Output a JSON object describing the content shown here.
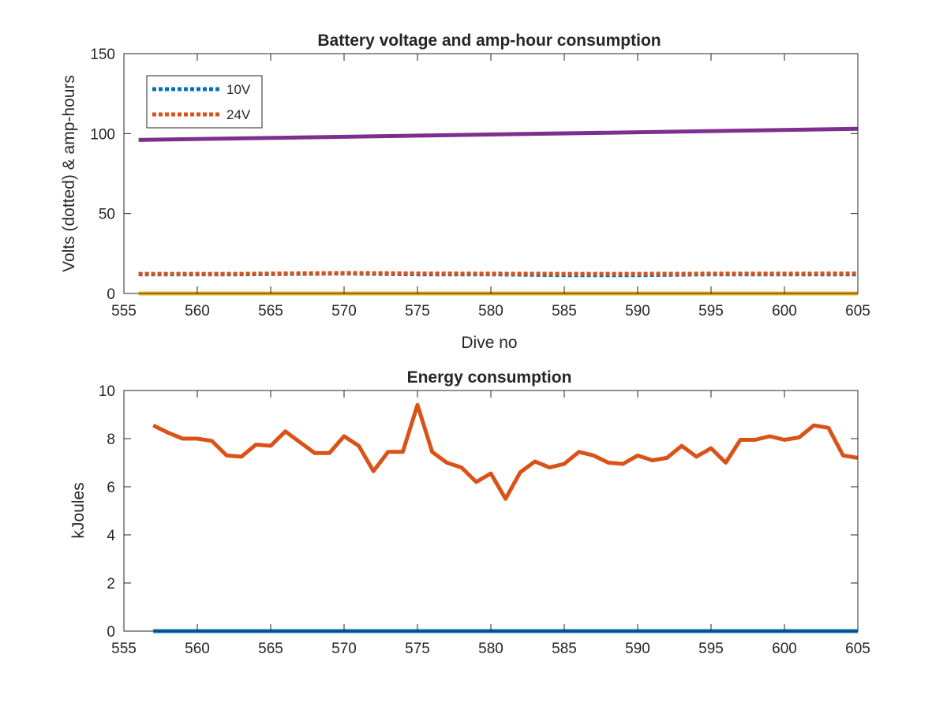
{
  "chart_data": [
    {
      "type": "line",
      "title": "Battery voltage and amp-hour consumption",
      "xlabel": "Dive no",
      "ylabel": "Volts (dotted) & amp-hours",
      "xlim": [
        555,
        605
      ],
      "ylim": [
        0,
        150
      ],
      "xticks": [
        555,
        560,
        565,
        570,
        575,
        580,
        585,
        590,
        595,
        600,
        605
      ],
      "yticks": [
        0,
        50,
        100,
        150
      ],
      "grid": false,
      "legend_position": "top-left",
      "series": [
        {
          "name": "10V",
          "style": "dotted",
          "color": "#0072BD",
          "x": [
            556,
            563,
            570,
            575,
            580,
            585,
            590,
            595,
            600,
            605
          ],
          "y": [
            12,
            12,
            12.5,
            12,
            12,
            11.5,
            11.5,
            12,
            12,
            12
          ]
        },
        {
          "name": "24V",
          "style": "dotted",
          "color": "#D95319",
          "x": [
            556,
            563,
            570,
            575,
            580,
            585,
            590,
            595,
            600,
            605
          ],
          "y": [
            12.3,
            12.3,
            12.8,
            12.5,
            12.4,
            12.3,
            12.3,
            12.4,
            12.4,
            12.5
          ]
        },
        {
          "style": "solid",
          "color": "#7E2F8E",
          "x": [
            556,
            605
          ],
          "y": [
            96,
            103
          ]
        },
        {
          "style": "solid",
          "color": "#EDB120",
          "x": [
            556,
            605
          ],
          "y": [
            0,
            0
          ]
        }
      ]
    },
    {
      "type": "line",
      "title": "Energy consumption",
      "xlabel": "",
      "ylabel": "kJoules",
      "xlim": [
        555,
        605
      ],
      "ylim": [
        0,
        10
      ],
      "xticks": [
        555,
        560,
        565,
        570,
        575,
        580,
        585,
        590,
        595,
        600,
        605
      ],
      "yticks": [
        0,
        2,
        4,
        6,
        8,
        10
      ],
      "grid": false,
      "series": [
        {
          "style": "solid",
          "color": "#D95319",
          "x": [
            557,
            558,
            559,
            560,
            561,
            562,
            563,
            564,
            565,
            566,
            567,
            568,
            569,
            570,
            571,
            572,
            573,
            574,
            575,
            576,
            577,
            578,
            579,
            580,
            581,
            582,
            583,
            584,
            585,
            586,
            587,
            588,
            589,
            590,
            591,
            592,
            593,
            594,
            595,
            596,
            597,
            598,
            599,
            600,
            601,
            602,
            603,
            604,
            605
          ],
          "y": [
            8.55,
            8.25,
            8.0,
            8.0,
            7.9,
            7.3,
            7.25,
            7.75,
            7.7,
            8.3,
            7.85,
            7.4,
            7.4,
            8.1,
            7.7,
            6.65,
            7.45,
            7.45,
            9.4,
            7.45,
            7.0,
            6.8,
            6.2,
            6.55,
            5.5,
            6.6,
            7.05,
            6.8,
            6.95,
            7.45,
            7.3,
            7.0,
            6.95,
            7.3,
            7.1,
            7.2,
            7.7,
            7.25,
            7.6,
            7.0,
            7.95,
            7.95,
            8.1,
            7.95,
            8.05,
            8.55,
            8.45,
            7.3,
            7.2
          ]
        },
        {
          "style": "solid",
          "color": "#0072BD",
          "x": [
            557,
            605
          ],
          "y": [
            0,
            0
          ]
        }
      ]
    }
  ]
}
